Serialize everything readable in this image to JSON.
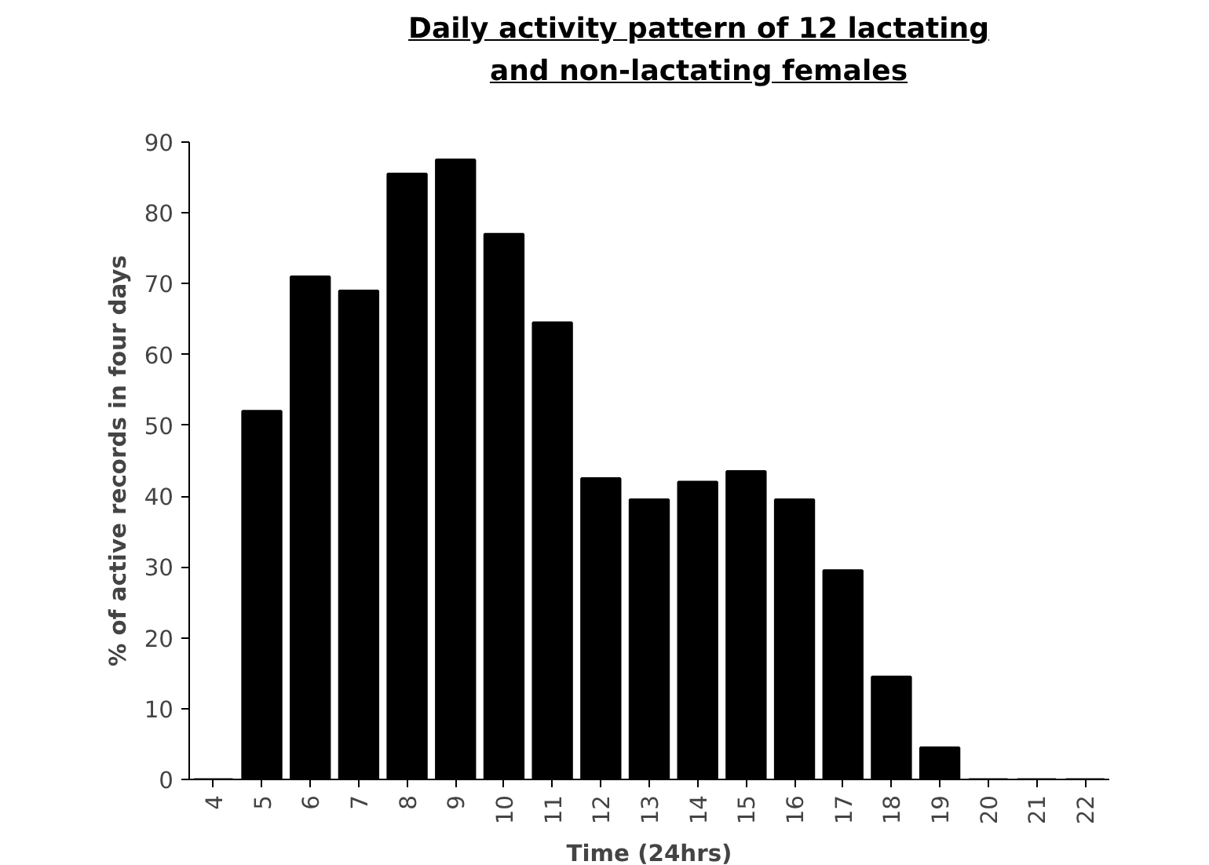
{
  "chart_data": {
    "type": "bar",
    "title": "Daily activity pattern of 12 lactating and non-lactating females",
    "xlabel": "Time (24hrs)",
    "ylabel": "% of active records in four days",
    "categories": [
      "4",
      "5",
      "6",
      "7",
      "8",
      "9",
      "10",
      "11",
      "12",
      "13",
      "14",
      "15",
      "16",
      "17",
      "18",
      "19",
      "20",
      "21",
      "22"
    ],
    "values": [
      0,
      52,
      71,
      69,
      85.5,
      87.5,
      77,
      64.5,
      42.5,
      39.5,
      42,
      43.5,
      39.5,
      29.5,
      14.5,
      4.5,
      0,
      0,
      0
    ],
    "color": "#000000",
    "ylim": [
      0,
      90
    ],
    "yticks": [
      0,
      10,
      20,
      30,
      40,
      50,
      60,
      70,
      80,
      90
    ],
    "grid": false
  }
}
